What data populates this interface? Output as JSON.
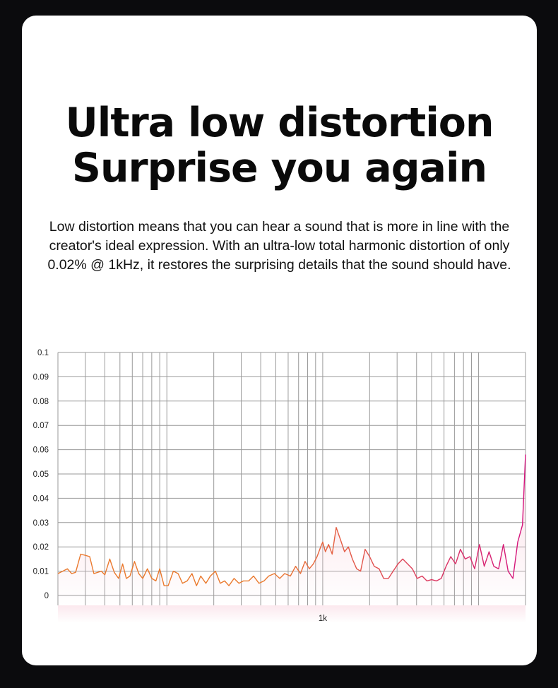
{
  "headline": {
    "line1": "Ultra low distortion",
    "line2": "Surprise you again"
  },
  "description": "Low distortion means that you can hear a sound that is more in line with the creator's ideal expression. With an ultra-low total harmonic distortion of only 0.02% @ 1kHz, it restores the surprising details that the sound should have.",
  "colors": {
    "background": "#0b0b0d",
    "card": "#ffffff",
    "grid": "#9a9a9a",
    "line_start": "#ea7a2e",
    "line_end": "#d4147e",
    "fill": "#f7c9d6"
  },
  "chart_data": {
    "type": "line",
    "title": "",
    "xlabel": "",
    "ylabel": "",
    "x_scale": "log",
    "x_tick_labels": [
      "1k"
    ],
    "y_ticks": [
      "0.1",
      "0.09",
      "0.08",
      "0.07",
      "0.06",
      "0.05",
      "0.04",
      "0.03",
      "0.02",
      "0.01",
      "0"
    ],
    "ylim": [
      0,
      0.1
    ],
    "xlim": [
      20,
      20000
    ],
    "grid": true,
    "legend": "none",
    "series": [
      {
        "x": [
          20,
          21.5,
          23,
          24.5,
          26,
          28,
          30,
          32,
          34,
          36,
          38,
          40,
          43,
          46,
          49,
          52,
          55,
          58,
          62,
          66,
          70,
          75,
          80,
          85,
          90,
          96,
          102,
          110,
          118,
          126,
          135,
          145,
          155,
          165,
          178,
          190,
          205,
          220,
          235,
          250,
          270,
          290,
          310,
          335,
          360,
          390,
          420,
          450,
          490,
          530,
          570,
          620,
          670,
          720,
          770,
          820,
          870,
          920,
          970,
          1000,
          1040,
          1090,
          1150,
          1220,
          1300,
          1380,
          1460,
          1550,
          1650,
          1750,
          1870,
          2000,
          2140,
          2300,
          2460,
          2640,
          2830,
          3040,
          3260,
          3500,
          3760,
          4040,
          4340,
          4660,
          5000,
          5370,
          5760,
          6180,
          6630,
          7120,
          7640,
          8200,
          8800,
          9440,
          10130,
          10870,
          11670,
          12520,
          13440,
          14420,
          15480,
          16610,
          17830,
          19130,
          20000
        ],
        "values": [
          0.009,
          0.01,
          0.011,
          0.009,
          0.0095,
          0.017,
          0.0165,
          0.016,
          0.009,
          0.0095,
          0.01,
          0.0085,
          0.015,
          0.0095,
          0.007,
          0.013,
          0.007,
          0.008,
          0.014,
          0.009,
          0.007,
          0.011,
          0.007,
          0.006,
          0.011,
          0.004,
          0.004,
          0.01,
          0.009,
          0.005,
          0.006,
          0.009,
          0.004,
          0.008,
          0.005,
          0.008,
          0.01,
          0.005,
          0.006,
          0.004,
          0.007,
          0.005,
          0.006,
          0.006,
          0.008,
          0.005,
          0.006,
          0.008,
          0.009,
          0.007,
          0.009,
          0.008,
          0.012,
          0.009,
          0.014,
          0.011,
          0.013,
          0.016,
          0.02,
          0.022,
          0.018,
          0.021,
          0.017,
          0.028,
          0.023,
          0.018,
          0.02,
          0.015,
          0.011,
          0.01,
          0.019,
          0.016,
          0.012,
          0.011,
          0.007,
          0.007,
          0.01,
          0.013,
          0.015,
          0.013,
          0.011,
          0.007,
          0.008,
          0.006,
          0.0065,
          0.006,
          0.007,
          0.012,
          0.016,
          0.013,
          0.019,
          0.015,
          0.016,
          0.011,
          0.021,
          0.012,
          0.018,
          0.012,
          0.011,
          0.021,
          0.01,
          0.007,
          0.022,
          0.029,
          0.058
        ]
      }
    ]
  }
}
